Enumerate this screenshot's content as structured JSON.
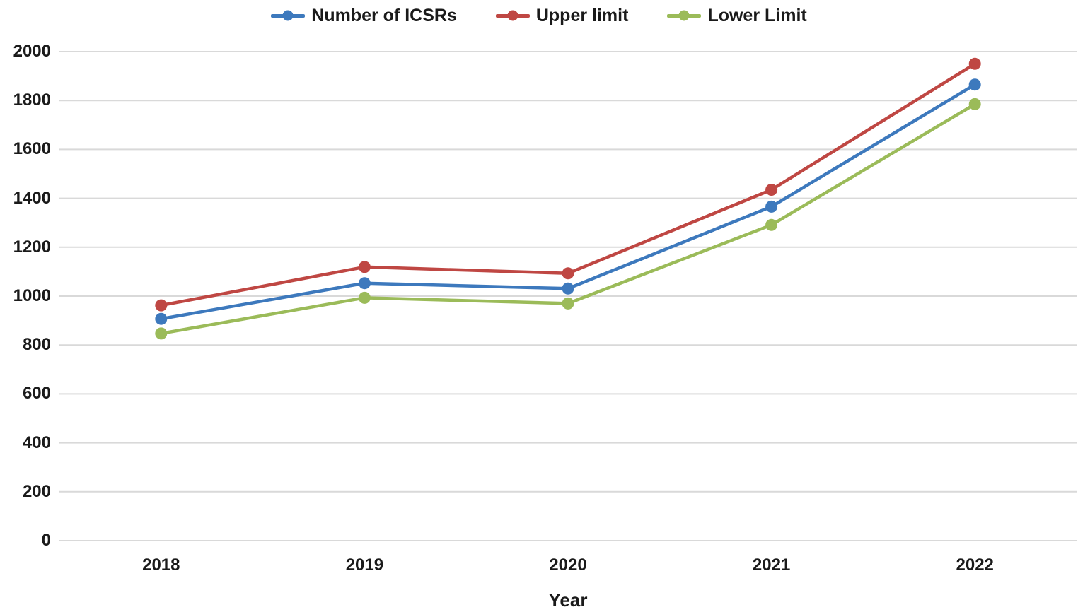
{
  "chart_data": {
    "type": "line",
    "title": "",
    "xlabel": "Year",
    "ylabel": "",
    "categories": [
      "2018",
      "2019",
      "2020",
      "2021",
      "2022"
    ],
    "series": [
      {
        "name": "Number of ICSRs",
        "color": "#3D79BD",
        "values": [
          907,
          1053,
          1031,
          1366,
          1865
        ]
      },
      {
        "name": "Upper limit",
        "color": "#BF4743",
        "values": [
          962,
          1119,
          1093,
          1435,
          1950
        ]
      },
      {
        "name": "Lower Limit",
        "color": "#9BBB59",
        "values": [
          847,
          993,
          970,
          1291,
          1785
        ]
      }
    ],
    "ylim": [
      0,
      2000
    ],
    "ytick_step": 200,
    "ytick_labels": [
      "0",
      "200",
      "400",
      "600",
      "800",
      "1000",
      "1200",
      "1400",
      "1600",
      "1800",
      "2000"
    ],
    "grid": "horizontal",
    "grid_color": "#D9D9D9",
    "text_color": "#1a1a1a",
    "legend_position": "top",
    "marker": "circle"
  }
}
